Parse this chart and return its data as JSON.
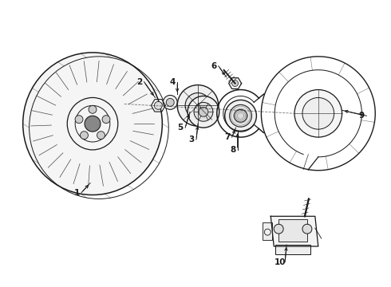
{
  "background_color": "#ffffff",
  "line_color": "#1a1a1a",
  "figsize": [
    4.9,
    3.6
  ],
  "dpi": 100,
  "xlim": [
    0,
    490
  ],
  "ylim": [
    0,
    360
  ]
}
